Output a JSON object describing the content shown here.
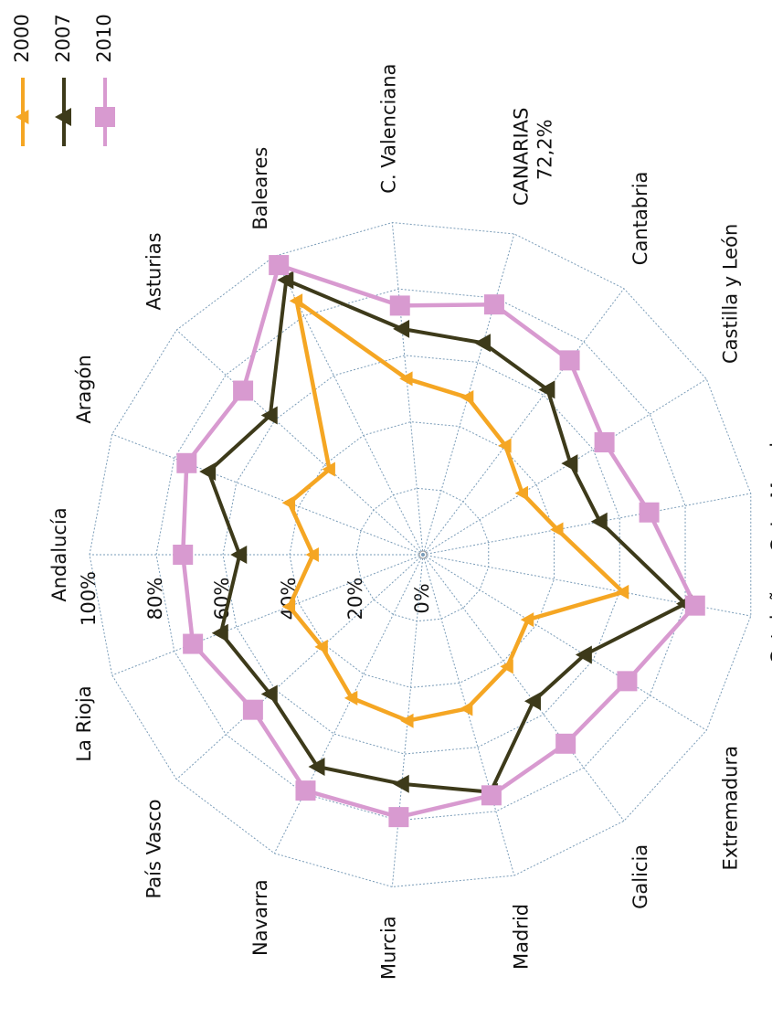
{
  "chart_data": {
    "type": "radar",
    "categories": [
      "Andalucía",
      "Aragón",
      "Asturias",
      "Baleares",
      "C. Valenciana",
      "CANARIAS",
      "Cantabria",
      "Castilla y León",
      "C. La Mancha",
      "Cataluña",
      "Extremadura",
      "Galicia",
      "Madrid",
      "Murcia",
      "Navarra",
      "País Vasco",
      "La Rioja"
    ],
    "annotation": "72,2%",
    "series": [
      {
        "name": "2000",
        "color": "#f5a623",
        "values": [
          33,
          43,
          38,
          85,
          53,
          49,
          41,
          35,
          41,
          61,
          37,
          42,
          48,
          50,
          48,
          41,
          43
        ]
      },
      {
        "name": "2007",
        "color": "#3d3a1a",
        "values": [
          55,
          69,
          62,
          92,
          68,
          66,
          62,
          52,
          54,
          80,
          57,
          55,
          74,
          69,
          71,
          62,
          65
        ]
      },
      {
        "name": "2010",
        "color": "#d89ad0",
        "values": [
          72,
          76,
          73,
          97,
          75,
          78,
          73,
          64,
          69,
          83,
          72,
          71,
          75,
          79,
          79,
          69,
          74
        ]
      }
    ],
    "ylim": [
      0,
      100
    ],
    "yticks": [
      {
        "value": 0,
        "label": "0%"
      },
      {
        "value": 20,
        "label": "20%"
      },
      {
        "value": 40,
        "label": "40%"
      },
      {
        "value": 60,
        "label": "60%"
      },
      {
        "value": 80,
        "label": "80%"
      },
      {
        "value": 100,
        "label": "100%"
      }
    ],
    "grid": true,
    "legend": "top-left"
  }
}
